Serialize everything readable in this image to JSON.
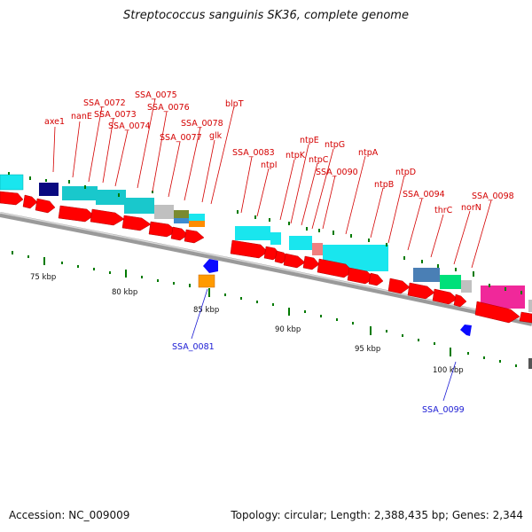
{
  "title": "Streptococcus sanguinis SK36, complete genome",
  "footer": {
    "accession": "Accession: NC_009009",
    "topology": "Topology: circular; Length: 2,388,435 bp; Genes: 2,344"
  },
  "colors": {
    "cds": "#ff0000",
    "label_red": "#d40000",
    "label_blue": "#1a1ad4",
    "backbone": "#888888",
    "tick": "#007a00"
  },
  "scale": {
    "labels": [
      "75 kbp",
      "80 kbp",
      "85 kbp",
      "90 kbp",
      "95 kbp",
      "100 kbp"
    ]
  },
  "labels_top": [
    "axe1",
    "nanE",
    "SSA_0072",
    "SSA_0073",
    "SSA_0074",
    "SSA_0075",
    "SSA_0076",
    "SSA_0077",
    "SSA_0078",
    "glk",
    "blpT",
    "SSA_0083",
    "ntpI",
    "ntpK",
    "ntpE",
    "ntpC",
    "ntpG",
    "SSA_0090",
    "ntpA",
    "ntpB",
    "ntpD",
    "SSA_0094",
    "thrC",
    "norN",
    "SSA_0098"
  ],
  "labels_bottom": [
    "SSA_0081",
    "SSA_0099"
  ]
}
